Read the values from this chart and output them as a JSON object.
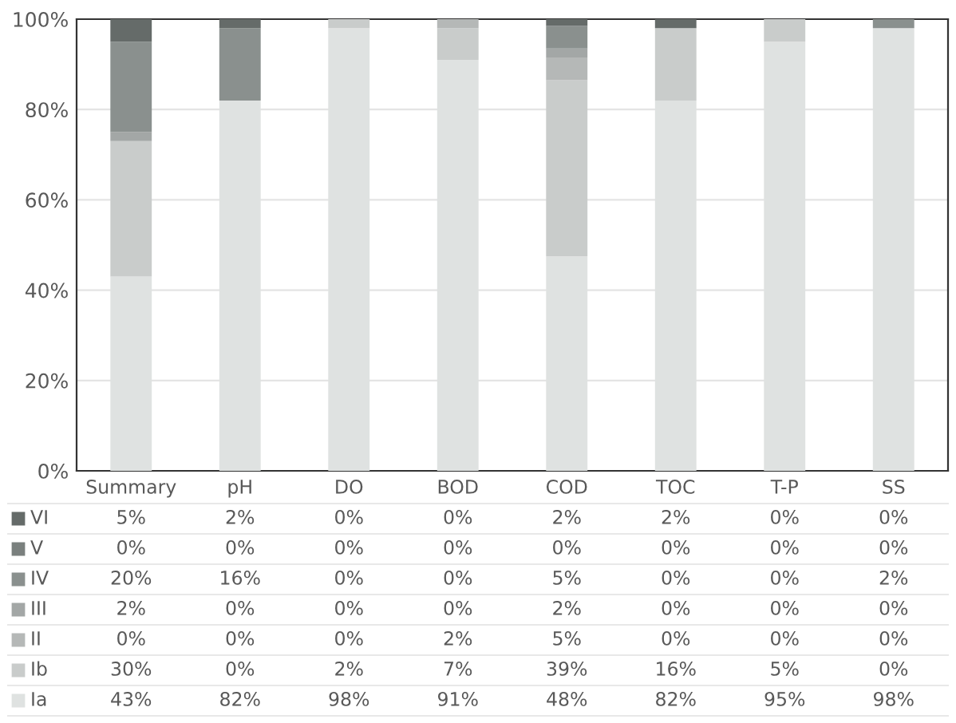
{
  "chart_data": {
    "type": "bar",
    "stacked": true,
    "categories": [
      "Summary",
      "pH",
      "DO",
      "BOD",
      "COD",
      "TOC",
      "T-P",
      "SS"
    ],
    "series": [
      {
        "name": "Ia",
        "color": "#dfe2e1",
        "values": [
          43,
          82,
          98,
          91,
          47.5,
          82,
          95,
          98
        ],
        "value_labels": [
          "43%",
          "82%",
          "98%",
          "91%",
          "48%",
          "82%",
          "95%",
          "98%"
        ]
      },
      {
        "name": "Ib",
        "color": "#c9cccb",
        "values": [
          30,
          0,
          2,
          7,
          39,
          16,
          5,
          0
        ],
        "value_labels": [
          "30%",
          "0%",
          "2%",
          "7%",
          "39%",
          "16%",
          "5%",
          "0%"
        ]
      },
      {
        "name": "II",
        "color": "#b5b8b7",
        "values": [
          0,
          0,
          0,
          2,
          5,
          0,
          0,
          0
        ],
        "value_labels": [
          "0%",
          "0%",
          "0%",
          "2%",
          "5%",
          "0%",
          "0%",
          "0%"
        ]
      },
      {
        "name": "III",
        "color": "#a3a7a6",
        "values": [
          2,
          0,
          0,
          0,
          2,
          0,
          0,
          0
        ],
        "value_labels": [
          "2%",
          "0%",
          "0%",
          "0%",
          "2%",
          "0%",
          "0%",
          "0%"
        ]
      },
      {
        "name": "IV",
        "color": "#8a908e",
        "values": [
          20,
          16,
          0,
          0,
          5,
          0,
          0,
          2
        ],
        "value_labels": [
          "20%",
          "16%",
          "0%",
          "0%",
          "5%",
          "0%",
          "0%",
          "2%"
        ]
      },
      {
        "name": "V",
        "color": "#7a807e",
        "values": [
          0,
          0,
          0,
          0,
          0,
          0,
          0,
          0
        ],
        "value_labels": [
          "0%",
          "0%",
          "0%",
          "0%",
          "0%",
          "0%",
          "0%",
          "0%"
        ]
      },
      {
        "name": "VI",
        "color": "#656b69",
        "values": [
          5,
          2,
          0,
          0,
          1.5,
          2,
          0,
          0
        ],
        "value_labels": [
          "5%",
          "2%",
          "0%",
          "0%",
          "2%",
          "2%",
          "0%",
          "0%"
        ]
      }
    ],
    "ylim": [
      0,
      100
    ],
    "yticks": [
      {
        "value": 0,
        "label": "0%"
      },
      {
        "value": 20,
        "label": "20%"
      },
      {
        "value": 40,
        "label": "40%"
      },
      {
        "value": 60,
        "label": "60%"
      },
      {
        "value": 80,
        "label": "80%"
      },
      {
        "value": 100,
        "label": "100%"
      }
    ],
    "grid": "y",
    "legend": "bottom"
  }
}
